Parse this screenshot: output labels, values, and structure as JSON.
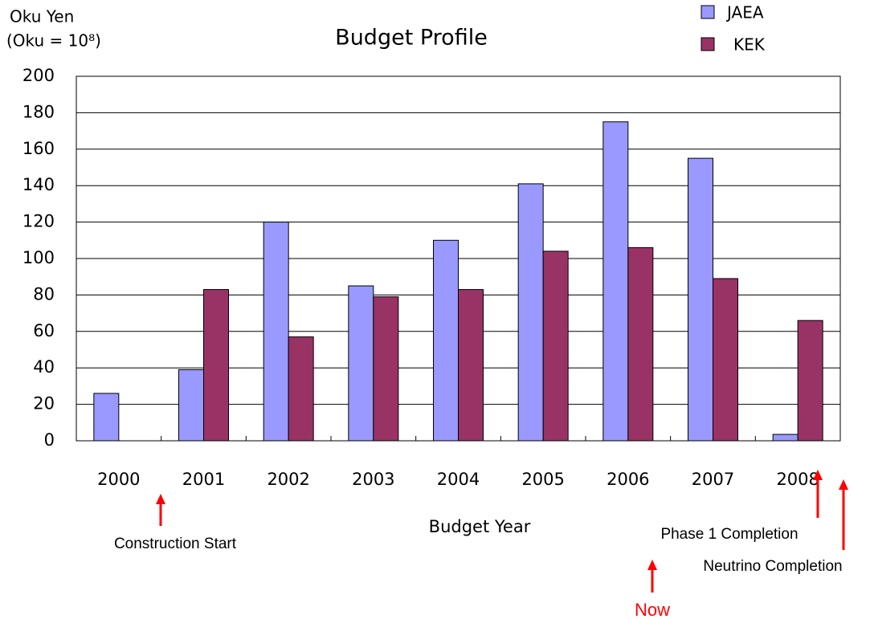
{
  "chart_data": {
    "type": "bar",
    "title": "Budget Profile",
    "y_axis_label": [
      "Oku Yen",
      "(Oku = 10⁸)"
    ],
    "x_axis_label": "Budget Year",
    "categories": [
      "2000",
      "2001",
      "2002",
      "2003",
      "2004",
      "2005",
      "2006",
      "2007",
      "2008"
    ],
    "series": [
      {
        "name": "JAEA",
        "color": "#9999ff",
        "values": [
          26,
          39,
          120,
          85,
          110,
          141,
          175,
          155,
          3.5
        ]
      },
      {
        "name": "KEK",
        "color": "#993366",
        "values": [
          0,
          83,
          57,
          79,
          83,
          104,
          106,
          89,
          66
        ]
      }
    ],
    "ylim": [
      0,
      200
    ],
    "yticks": [
      0,
      20,
      40,
      60,
      80,
      100,
      120,
      140,
      160,
      180,
      200
    ],
    "grid": true,
    "legend": "top-right",
    "annotations": [
      "Construction Start",
      "Phase 1 Completion",
      "Neutrino Completion",
      "Now"
    ],
    "annotation_color": "#ff0000"
  }
}
